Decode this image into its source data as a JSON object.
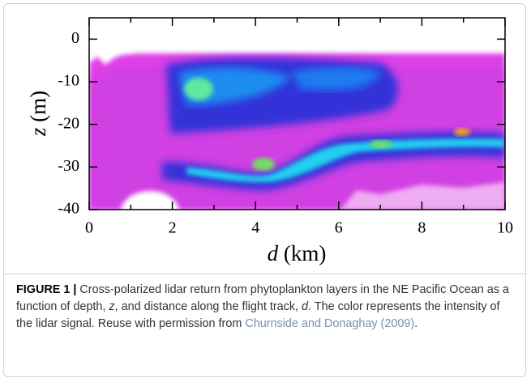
{
  "figure": {
    "x_label": {
      "symbol": "d",
      "unit": "(km)"
    },
    "y_label": {
      "symbol": "z",
      "unit": "(m)"
    },
    "xlim": [
      0,
      10
    ],
    "ylim": [
      -40,
      5
    ],
    "xticks": [
      0,
      2,
      4,
      6,
      8,
      10
    ],
    "yticks": [
      0,
      -10,
      -20,
      -30,
      -40
    ]
  },
  "caption": {
    "label": "FIGURE 1 |",
    "text_1": " Cross-polarized lidar return from phytoplankton layers in the NE Pacific Ocean as a function of depth, ",
    "z": "z",
    "text_2": ", and distance along the flight track, ",
    "d": "d",
    "text_3": ". The color represents the intensity of the lidar signal. Reuse with permission from ",
    "link": "Churnside and Donaghay (2009)",
    "text_4": "."
  }
}
